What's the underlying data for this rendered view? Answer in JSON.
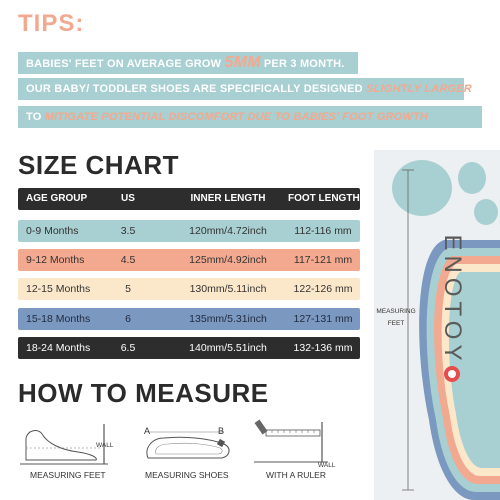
{
  "tips": {
    "title": "TIPS:",
    "line1": {
      "a": "Babies' feet on average grow ",
      "b": "5mm",
      "c": " per 3 month."
    },
    "line2": {
      "a": "Our baby/ toddler shoes are specifically designed ",
      "b": "slightly larger"
    },
    "line3": {
      "a": "to ",
      "b": "mitigate potential discomfort due to babies' foot growth"
    }
  },
  "size_chart": {
    "title": "SIZE CHART",
    "headers": [
      "AGE GROUP",
      "US",
      "INNER LENGTH",
      "FOOT LENGTH"
    ],
    "rows": [
      [
        "0-9 Months",
        "3.5",
        "120mm/4.72inch",
        "112-116 mm"
      ],
      [
        "9-12 Months",
        "4.5",
        "125mm/4.92inch",
        "117-121 mm"
      ],
      [
        "12-15 Months",
        "5",
        "130mm/5.11inch",
        "122-126 mm"
      ],
      [
        "15-18 Months",
        "6",
        "135mm/5.31inch",
        "127-131 mm"
      ],
      [
        "18-24 Months",
        "6.5",
        "140mm/5.51inch",
        "132-136 mm"
      ]
    ],
    "row_colors": [
      "#a8cfd1",
      "#f2a98f",
      "#fbe8cb",
      "#7b98c0",
      "#2d2d2d"
    ]
  },
  "how_to": {
    "title": "HOW TO MEASURE",
    "labels": [
      "MEASURING FEET",
      "MEASURING SHOES",
      "WITH A RULER"
    ],
    "wall": "WALL",
    "point_a": "A",
    "point_b": "B"
  },
  "side": {
    "measuring_feet_line1": "MEASURING",
    "measuring_feet_line2": "FEET",
    "brand": "ENOTOY"
  }
}
